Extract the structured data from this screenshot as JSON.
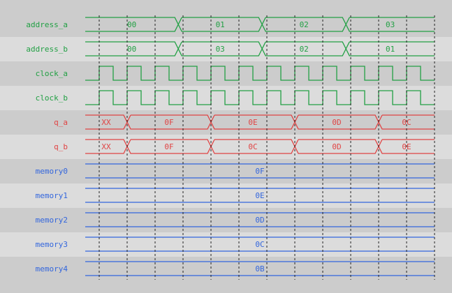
{
  "colors": {
    "control": "#22a044",
    "output": "#e04444",
    "memory": "#3366dd",
    "row_dark": "#cccccc",
    "row_light": "#dcdcdc",
    "grid": "#222222"
  },
  "time_axis": {
    "unit": "clock cycle",
    "cycles": 12
  },
  "signals": [
    {
      "name": "address_a",
      "kind": "bus",
      "group": "control",
      "segments": [
        {
          "value": "00",
          "start": -0.5
        },
        {
          "value": "01",
          "start": 2.83
        },
        {
          "value": "02",
          "start": 5.83
        },
        {
          "value": "03",
          "start": 8.83
        }
      ]
    },
    {
      "name": "address_b",
      "kind": "bus",
      "group": "control",
      "segments": [
        {
          "value": "00",
          "start": -0.5
        },
        {
          "value": "03",
          "start": 2.83
        },
        {
          "value": "02",
          "start": 5.83
        },
        {
          "value": "01",
          "start": 8.83
        }
      ]
    },
    {
      "name": "clock_a",
      "kind": "clock",
      "group": "control"
    },
    {
      "name": "clock_b",
      "kind": "clock",
      "group": "control"
    },
    {
      "name": "q_a",
      "kind": "bus",
      "group": "output",
      "segments": [
        {
          "value": "XX",
          "start": -0.5
        },
        {
          "value": "0F",
          "start": 1
        },
        {
          "value": "0E",
          "start": 4
        },
        {
          "value": "0D",
          "start": 7
        },
        {
          "value": "0C",
          "start": 10
        }
      ]
    },
    {
      "name": "q_b",
      "kind": "bus",
      "group": "output",
      "segments": [
        {
          "value": "XX",
          "start": -0.5
        },
        {
          "value": "0F",
          "start": 1
        },
        {
          "value": "0C",
          "start": 4
        },
        {
          "value": "0D",
          "start": 7
        },
        {
          "value": "0E",
          "start": 10
        }
      ]
    },
    {
      "name": "memory0",
      "kind": "bus",
      "group": "memory",
      "segments": [
        {
          "value": "0F",
          "start": -0.5
        }
      ]
    },
    {
      "name": "memory1",
      "kind": "bus",
      "group": "memory",
      "segments": [
        {
          "value": "0E",
          "start": -0.5
        }
      ]
    },
    {
      "name": "memory2",
      "kind": "bus",
      "group": "memory",
      "segments": [
        {
          "value": "0D",
          "start": -0.5
        }
      ]
    },
    {
      "name": "memory3",
      "kind": "bus",
      "group": "memory",
      "segments": [
        {
          "value": "0C",
          "start": -0.5
        }
      ]
    },
    {
      "name": "memory4",
      "kind": "bus",
      "group": "memory",
      "segments": [
        {
          "value": "0B",
          "start": -0.5
        }
      ]
    }
  ]
}
